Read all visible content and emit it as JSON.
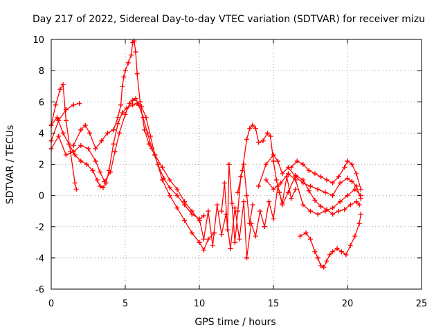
{
  "chart_data": {
    "type": "line",
    "title": "Day 217 of 2022, Sidereal Day-to-day VTEC variation (SDTVAR) for receiver mizu",
    "xlabel": "GPS time / hours",
    "ylabel": "SDTVAR / TECUs",
    "xlim": [
      0,
      25
    ],
    "ylim": [
      -6,
      10
    ],
    "xticks": [
      0,
      5,
      10,
      15,
      20,
      25
    ],
    "yticks": [
      -6,
      -4,
      -2,
      0,
      2,
      4,
      6,
      8,
      10
    ],
    "grid": true,
    "marker": "+",
    "color": "#ff0000",
    "series": [
      {
        "name": "trace-1",
        "x": [
          0.0,
          0.3,
          0.6,
          0.8,
          1.0,
          1.3,
          1.6,
          1.7
        ],
        "y": [
          4.5,
          5.8,
          6.8,
          7.1,
          4.8,
          2.8,
          0.8,
          0.4
        ]
      },
      {
        "name": "trace-2",
        "x": [
          0.0,
          0.5,
          1.0,
          1.5,
          1.9
        ],
        "y": [
          3.5,
          4.8,
          5.5,
          5.8,
          5.9
        ]
      },
      {
        "name": "trace-3",
        "x": [
          0.0,
          0.4,
          0.8,
          1.2,
          1.6,
          2.0,
          2.4,
          2.8,
          3.1,
          3.3,
          3.5,
          3.7,
          3.9,
          4.2,
          4.5,
          4.8,
          5.1,
          5.5,
          5.8,
          6.1,
          6.4,
          6.7,
          7.0,
          7.5,
          8.0,
          8.5,
          9.0,
          9.5,
          10.0,
          10.3,
          10.6,
          11.0
        ],
        "y": [
          4.5,
          5.0,
          4.0,
          3.3,
          2.6,
          2.2,
          2.0,
          1.6,
          1.0,
          0.6,
          0.5,
          0.8,
          1.6,
          3.3,
          4.6,
          5.3,
          5.6,
          5.8,
          5.9,
          5.7,
          5.0,
          3.8,
          2.6,
          1.0,
          0.0,
          -0.8,
          -1.6,
          -2.4,
          -3.0,
          -3.5,
          -2.8,
          -2.4
        ]
      },
      {
        "name": "trace-4",
        "x": [
          0.0,
          0.5,
          1.0,
          1.5,
          2.0,
          2.5,
          3.0,
          3.3,
          3.6,
          4.0,
          4.3,
          4.6,
          5.0,
          5.3,
          5.5,
          5.7,
          5.9,
          6.2,
          6.5,
          6.8,
          7.2,
          7.6,
          8.0,
          8.5,
          9.0,
          9.5,
          10.0,
          10.3
        ],
        "y": [
          3.0,
          3.8,
          2.6,
          2.8,
          3.2,
          3.0,
          2.2,
          1.5,
          0.9,
          1.5,
          2.8,
          4.0,
          5.2,
          5.9,
          6.1,
          6.2,
          5.8,
          5.0,
          4.0,
          3.0,
          2.0,
          1.1,
          0.5,
          0.0,
          -0.6,
          -1.2,
          -1.5,
          -1.3
        ]
      },
      {
        "name": "trace-5",
        "x": [
          1.5,
          2.0,
          2.3,
          2.6,
          3.0,
          3.4,
          3.8,
          4.2,
          4.5,
          4.7,
          4.8,
          4.9,
          5.0,
          5.2,
          5.4,
          5.5,
          5.6,
          5.7,
          5.8,
          6.0,
          6.3,
          6.6,
          7.0,
          7.5,
          8.0,
          8.5,
          9.0,
          9.5,
          10.0
        ],
        "y": [
          3.2,
          4.2,
          4.5,
          4.0,
          3.0,
          3.5,
          4.0,
          4.2,
          5.0,
          5.8,
          7.0,
          7.6,
          8.0,
          8.5,
          9.0,
          9.8,
          9.9,
          9.2,
          7.8,
          6.0,
          4.2,
          3.3,
          2.6,
          1.8,
          1.0,
          0.4,
          -0.4,
          -1.0,
          -1.6
        ]
      },
      {
        "name": "trace-6",
        "x": [
          10.0,
          10.3,
          10.6,
          10.9,
          11.2,
          11.5,
          11.8,
          12.1,
          12.4,
          12.7,
          13.0,
          13.2,
          13.5,
          13.8,
          14.1,
          14.4,
          14.7,
          15.0,
          15.3,
          15.6,
          15.9,
          16.2,
          16.5
        ],
        "y": [
          -1.5,
          -2.8,
          -1.0,
          -3.2,
          -0.6,
          -2.5,
          -1.2,
          -3.4,
          -0.8,
          -2.8,
          -0.4,
          -4.0,
          -1.8,
          -2.6,
          -1.0,
          -2.0,
          -0.4,
          -1.5,
          0.6,
          -0.5,
          1.2,
          -0.2,
          0.4
        ]
      },
      {
        "name": "trace-7",
        "x": [
          11.5,
          11.7,
          11.9,
          12.0,
          12.2,
          12.4,
          12.6,
          12.8,
          13.0,
          13.2,
          13.4,
          13.6
        ],
        "y": [
          -1.0,
          0.8,
          -2.2,
          2.0,
          -0.5,
          -3.0,
          -1.0,
          1.2,
          2.0,
          0.0,
          -1.8,
          -0.6
        ]
      },
      {
        "name": "trace-8",
        "x": [
          12.6,
          12.9,
          13.2,
          13.4,
          13.6,
          13.8,
          14.0,
          14.3,
          14.6,
          14.8,
          15.0,
          15.2,
          15.4,
          15.6,
          16.0,
          16.5,
          17.0,
          17.4,
          17.8,
          18.2,
          18.6,
          19.0,
          19.4,
          19.8,
          20.2,
          20.6,
          20.8
        ],
        "y": [
          0.2,
          1.6,
          3.6,
          4.3,
          4.5,
          4.3,
          3.4,
          3.5,
          4.0,
          3.8,
          2.2,
          1.0,
          0.2,
          -0.6,
          0.2,
          1.3,
          1.0,
          0.3,
          -0.3,
          -0.7,
          -0.9,
          -1.2,
          -1.0,
          -0.9,
          -0.6,
          -0.4,
          -0.6
        ]
      },
      {
        "name": "trace-9",
        "x": [
          14.0,
          14.5,
          15.0,
          15.3,
          15.6,
          16.0,
          16.5,
          17.0,
          17.5,
          18.0,
          18.5,
          19.0,
          19.5,
          20.0,
          20.3,
          20.6,
          20.9
        ],
        "y": [
          0.6,
          2.0,
          2.6,
          2.2,
          1.4,
          1.8,
          1.2,
          0.8,
          0.6,
          0.4,
          0.2,
          0.0,
          0.8,
          1.1,
          0.9,
          0.6,
          -0.2
        ]
      },
      {
        "name": "trace-10",
        "x": [
          14.5,
          15.0,
          15.5,
          16.0,
          16.5,
          17.0,
          17.5,
          18.0,
          18.5,
          19.0,
          19.5,
          20.0,
          20.5,
          20.9
        ],
        "y": [
          1.0,
          0.4,
          0.8,
          1.4,
          1.0,
          -0.6,
          -1.0,
          -1.2,
          -1.0,
          -0.8,
          -0.4,
          0.0,
          0.4,
          0.0
        ]
      },
      {
        "name": "trace-11",
        "x": [
          16.2,
          16.6,
          17.0,
          17.4,
          17.8,
          18.2,
          18.6,
          19.0,
          19.4,
          19.8,
          20.0,
          20.3,
          20.6,
          20.9
        ],
        "y": [
          1.8,
          2.2,
          2.0,
          1.6,
          1.4,
          1.2,
          1.0,
          0.8,
          1.2,
          1.8,
          2.2,
          2.0,
          1.4,
          0.4
        ]
      },
      {
        "name": "trace-12",
        "x": [
          16.8,
          17.2,
          17.5,
          17.8,
          18.0,
          18.2,
          18.4,
          18.6,
          18.8,
          19.0,
          19.3,
          19.6,
          19.9,
          20.2,
          20.5,
          20.8,
          20.9
        ],
        "y": [
          -2.6,
          -2.4,
          -2.8,
          -3.6,
          -4.0,
          -4.5,
          -4.6,
          -4.2,
          -3.8,
          -3.6,
          -3.4,
          -3.6,
          -3.8,
          -3.2,
          -2.6,
          -1.8,
          -1.2
        ]
      }
    ]
  }
}
